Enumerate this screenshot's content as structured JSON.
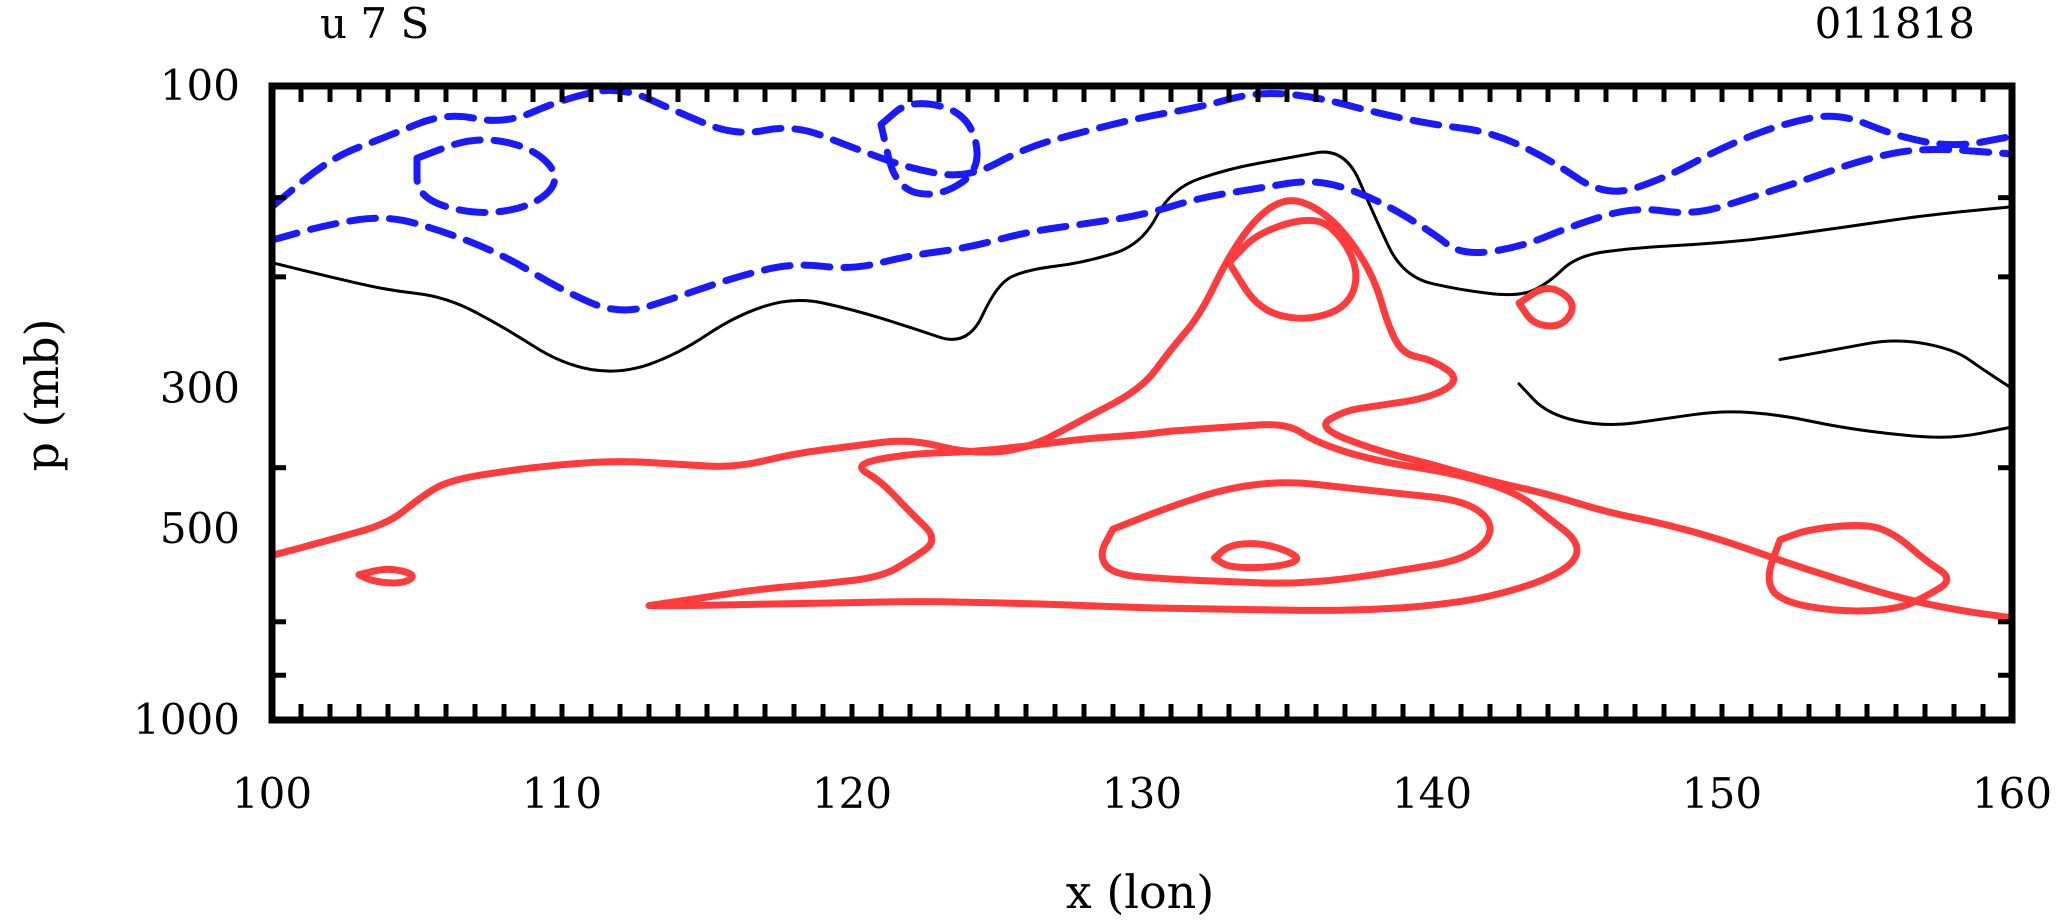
{
  "chart_data": {
    "type": "contour",
    "title_left": "u 7 S",
    "title_right": "011818",
    "xlabel": "x (lon)",
    "ylabel": "p (mb)",
    "xlim": [
      100,
      160
    ],
    "ylim": [
      1000,
      100
    ],
    "x_ticks": [
      "100",
      "110",
      "120",
      "130",
      "140",
      "150",
      "160"
    ],
    "y_ticks": [
      {
        "p": 100,
        "label": "100"
      },
      {
        "p": 300,
        "label": "300"
      },
      {
        "p": 500,
        "label": "500"
      },
      {
        "p": 1000,
        "label": "1000"
      }
    ],
    "colors": {
      "positive": "#ff3b3b",
      "negative": "#1a1aff",
      "zero": "#000000",
      "frame": "#000000"
    },
    "contours": [
      {
        "name": "zero-line-upper",
        "level": "zero",
        "points": [
          [
            100,
            190
          ],
          [
            102,
            200
          ],
          [
            104,
            210
          ],
          [
            106,
            215
          ],
          [
            108,
            240
          ],
          [
            110,
            275
          ],
          [
            112,
            285
          ],
          [
            114,
            265
          ],
          [
            116,
            230
          ],
          [
            118,
            215
          ],
          [
            120,
            225
          ],
          [
            122,
            240
          ],
          [
            124,
            258
          ],
          [
            125,
            205
          ],
          [
            126,
            195
          ],
          [
            128,
            190
          ],
          [
            130,
            178
          ],
          [
            131,
            145
          ],
          [
            133,
            135
          ],
          [
            135,
            130
          ],
          [
            137,
            125
          ],
          [
            138,
            160
          ],
          [
            139,
            200
          ],
          [
            141,
            210
          ],
          [
            143,
            215
          ],
          [
            144,
            205
          ],
          [
            145,
            185
          ],
          [
            147,
            180
          ],
          [
            149,
            178
          ],
          [
            151,
            175
          ],
          [
            153,
            170
          ],
          [
            155,
            165
          ],
          [
            157,
            160
          ],
          [
            160,
            155
          ]
        ]
      },
      {
        "name": "zero-line-lower",
        "level": "zero",
        "points": [
          [
            143,
            295
          ],
          [
            144,
            330
          ],
          [
            146,
            345
          ],
          [
            148,
            335
          ],
          [
            150,
            325
          ],
          [
            152,
            330
          ],
          [
            154,
            345
          ],
          [
            156,
            355
          ],
          [
            158,
            360
          ],
          [
            160,
            345
          ]
        ]
      },
      {
        "name": "zero-line-east-loop",
        "level": "zero",
        "points": [
          [
            152,
            270
          ],
          [
            154,
            260
          ],
          [
            156,
            250
          ],
          [
            158,
            260
          ],
          [
            159,
            280
          ],
          [
            160,
            300
          ]
        ]
      },
      {
        "name": "neg-upper-band",
        "level": "negative",
        "points": [
          [
            100,
            155
          ],
          [
            102,
            130
          ],
          [
            104,
            120
          ],
          [
            106,
            110
          ],
          [
            108,
            115
          ],
          [
            110,
            105
          ],
          [
            112,
            100
          ],
          [
            114,
            110
          ],
          [
            116,
            120
          ],
          [
            118,
            115
          ],
          [
            120,
            125
          ],
          [
            122,
            135
          ],
          [
            124,
            140
          ],
          [
            126,
            125
          ],
          [
            128,
            118
          ],
          [
            130,
            112
          ],
          [
            132,
            108
          ],
          [
            134,
            102
          ],
          [
            136,
            104
          ],
          [
            138,
            110
          ],
          [
            140,
            115
          ],
          [
            142,
            118
          ],
          [
            144,
            130
          ],
          [
            146,
            150
          ],
          [
            148,
            140
          ],
          [
            150,
            125
          ],
          [
            152,
            115
          ],
          [
            154,
            110
          ],
          [
            156,
            120
          ],
          [
            158,
            125
          ],
          [
            160,
            120
          ]
        ]
      },
      {
        "name": "neg-lower-band",
        "level": "negative",
        "points": [
          [
            100,
            175
          ],
          [
            102,
            165
          ],
          [
            104,
            160
          ],
          [
            106,
            170
          ],
          [
            108,
            185
          ],
          [
            110,
            210
          ],
          [
            112,
            230
          ],
          [
            114,
            215
          ],
          [
            116,
            200
          ],
          [
            118,
            190
          ],
          [
            120,
            195
          ],
          [
            122,
            185
          ],
          [
            124,
            180
          ],
          [
            126,
            170
          ],
          [
            128,
            165
          ],
          [
            130,
            160
          ],
          [
            132,
            150
          ],
          [
            134,
            145
          ],
          [
            136,
            140
          ],
          [
            138,
            150
          ],
          [
            140,
            170
          ],
          [
            141,
            185
          ],
          [
            143,
            180
          ],
          [
            145,
            165
          ],
          [
            147,
            155
          ],
          [
            149,
            160
          ],
          [
            151,
            150
          ],
          [
            153,
            140
          ],
          [
            155,
            130
          ],
          [
            157,
            125
          ],
          [
            160,
            128
          ]
        ]
      },
      {
        "name": "neg-eddy-west",
        "level": "negative",
        "points": [
          [
            105,
            130
          ],
          [
            107,
            120
          ],
          [
            109,
            125
          ],
          [
            110,
            140
          ],
          [
            109,
            155
          ],
          [
            107,
            160
          ],
          [
            105,
            150
          ],
          [
            105,
            130
          ]
        ]
      },
      {
        "name": "neg-eddy-central",
        "level": "negative",
        "points": [
          [
            121,
            115
          ],
          [
            122,
            105
          ],
          [
            124,
            110
          ],
          [
            124.5,
            135
          ],
          [
            123,
            150
          ],
          [
            121.5,
            145
          ],
          [
            121,
            115
          ]
        ]
      },
      {
        "name": "pos-central-outer",
        "level": "positive",
        "points": [
          [
            100,
            550
          ],
          [
            102,
            520
          ],
          [
            104,
            490
          ],
          [
            105,
            450
          ],
          [
            106,
            420
          ],
          [
            108,
            405
          ],
          [
            110,
            395
          ],
          [
            112,
            390
          ],
          [
            114,
            395
          ],
          [
            116,
            400
          ],
          [
            118,
            380
          ],
          [
            120,
            370
          ],
          [
            122,
            360
          ],
          [
            124,
            380
          ],
          [
            126,
            375
          ],
          [
            128,
            335
          ],
          [
            130,
            300
          ],
          [
            131,
            260
          ],
          [
            132,
            230
          ],
          [
            133,
            185
          ],
          [
            134,
            160
          ],
          [
            135,
            150
          ],
          [
            136,
            155
          ],
          [
            137,
            170
          ],
          [
            138,
            200
          ],
          [
            138.5,
            240
          ],
          [
            139,
            265
          ],
          [
            140,
            270
          ],
          [
            141,
            290
          ],
          [
            140,
            310
          ],
          [
            138,
            320
          ],
          [
            137,
            325
          ],
          [
            136,
            345
          ],
          [
            138,
            375
          ],
          [
            140,
            395
          ],
          [
            142,
            420
          ],
          [
            144,
            440
          ],
          [
            146,
            470
          ],
          [
            148,
            490
          ],
          [
            150,
            520
          ],
          [
            152,
            560
          ],
          [
            154,
            600
          ],
          [
            156,
            640
          ],
          [
            158,
            670
          ],
          [
            160,
            690
          ]
        ]
      },
      {
        "name": "pos-central-inner",
        "level": "positive",
        "points": [
          [
            113,
            660
          ],
          [
            115,
            640
          ],
          [
            117,
            620
          ],
          [
            119,
            610
          ],
          [
            121,
            595
          ],
          [
            122,
            560
          ],
          [
            123,
            520
          ],
          [
            122,
            470
          ],
          [
            121,
            420
          ],
          [
            120,
            395
          ],
          [
            122,
            380
          ],
          [
            124,
            378
          ],
          [
            126,
            370
          ],
          [
            128,
            360
          ],
          [
            130,
            355
          ],
          [
            131,
            350
          ],
          [
            133,
            345
          ],
          [
            135,
            340
          ],
          [
            136,
            365
          ],
          [
            138,
            390
          ],
          [
            141,
            410
          ],
          [
            143,
            440
          ],
          [
            144,
            480
          ],
          [
            145,
            520
          ],
          [
            145,
            560
          ],
          [
            144,
            600
          ],
          [
            142,
            640
          ],
          [
            140,
            660
          ],
          [
            138,
            670
          ],
          [
            136,
            672
          ],
          [
            134,
            670
          ],
          [
            132,
            668
          ],
          [
            130,
            665
          ],
          [
            128,
            660
          ],
          [
            126,
            655
          ],
          [
            124,
            652
          ],
          [
            122,
            650
          ],
          [
            120,
            653
          ],
          [
            118,
            655
          ],
          [
            116,
            658
          ],
          [
            114,
            660
          ],
          [
            113,
            660
          ]
        ]
      },
      {
        "name": "pos-core",
        "level": "positive",
        "points": [
          [
            129,
            500
          ],
          [
            131,
            460
          ],
          [
            133,
            430
          ],
          [
            135,
            420
          ],
          [
            137,
            430
          ],
          [
            139,
            440
          ],
          [
            141,
            450
          ],
          [
            142,
            480
          ],
          [
            142,
            520
          ],
          [
            141,
            560
          ],
          [
            139,
            580
          ],
          [
            137,
            600
          ],
          [
            135,
            610
          ],
          [
            133,
            605
          ],
          [
            131,
            600
          ],
          [
            129,
            590
          ],
          [
            128.5,
            550
          ],
          [
            129,
            500
          ]
        ]
      },
      {
        "name": "pos-core-eye",
        "level": "positive",
        "points": [
          [
            132.5,
            555
          ],
          [
            133,
            530
          ],
          [
            134,
            525
          ],
          [
            135,
            540
          ],
          [
            135.5,
            560
          ],
          [
            134.5,
            575
          ],
          [
            133,
            575
          ],
          [
            132.5,
            555
          ]
        ]
      },
      {
        "name": "pos-upper-cell",
        "level": "positive",
        "points": [
          [
            133,
            190
          ],
          [
            134,
            170
          ],
          [
            136,
            160
          ],
          [
            137,
            175
          ],
          [
            137.5,
            200
          ],
          [
            137,
            225
          ],
          [
            135.5,
            235
          ],
          [
            134,
            225
          ],
          [
            133,
            190
          ]
        ]
      },
      {
        "name": "pos-east-cell",
        "level": "positive",
        "points": [
          [
            152,
            520
          ],
          [
            153,
            500
          ],
          [
            155,
            490
          ],
          [
            156,
            510
          ],
          [
            157,
            560
          ],
          [
            158,
            600
          ],
          [
            157,
            640
          ],
          [
            156,
            670
          ],
          [
            154,
            675
          ],
          [
            152,
            650
          ],
          [
            151.5,
            600
          ],
          [
            152,
            520
          ]
        ]
      },
      {
        "name": "pos-small-west",
        "level": "positive",
        "points": [
          [
            103,
            590
          ],
          [
            104,
            575
          ],
          [
            105,
            590
          ],
          [
            104.5,
            610
          ],
          [
            103.5,
            605
          ],
          [
            103,
            590
          ]
        ]
      },
      {
        "name": "pos-small-east",
        "level": "positive",
        "points": [
          [
            143,
            220
          ],
          [
            144,
            205
          ],
          [
            145,
            220
          ],
          [
            144.5,
            240
          ],
          [
            143.5,
            238
          ],
          [
            143,
            220
          ]
        ]
      }
    ]
  }
}
